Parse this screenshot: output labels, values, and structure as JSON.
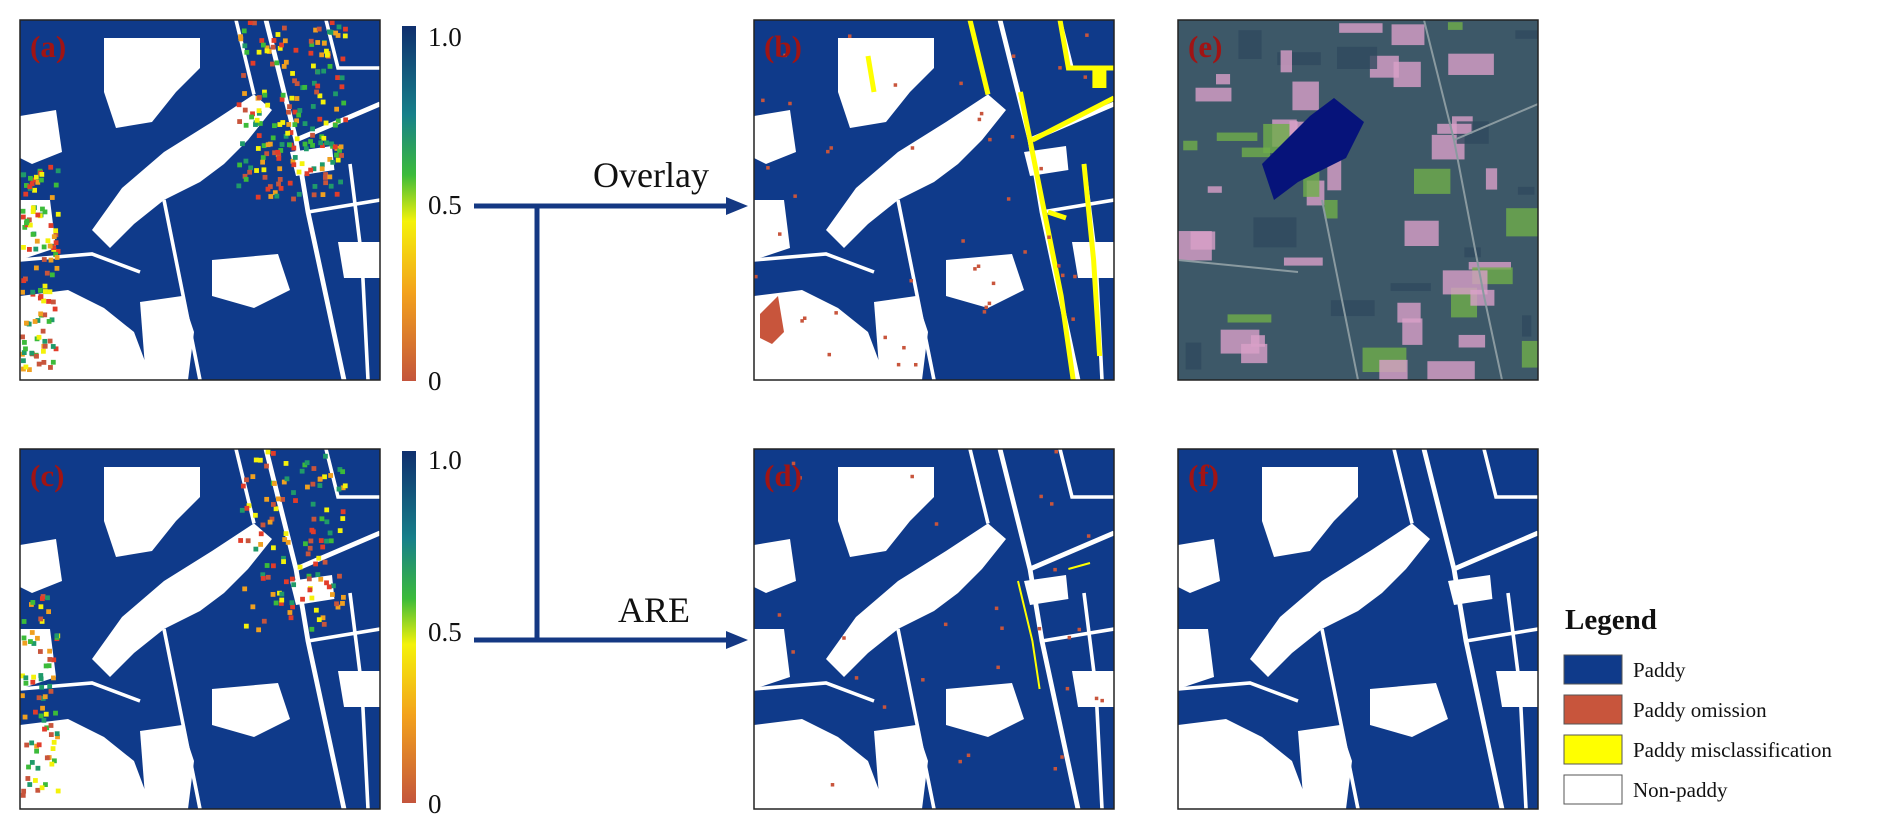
{
  "panel_labels": [
    "(a)",
    "(b)",
    "(c)",
    "(d)",
    "(e)",
    "(f)"
  ],
  "colorbars": [
    {
      "ticks": [
        "1.0",
        "0.5",
        "0"
      ]
    },
    {
      "ticks": [
        "1.0",
        "0.5",
        "0"
      ]
    }
  ],
  "arrows": {
    "overlay": "Overlay",
    "are": "ARE"
  },
  "legend": {
    "title": "Legend",
    "items": [
      "Paddy",
      "Paddy omission",
      "Paddy misclassification",
      "Non-paddy"
    ]
  }
}
